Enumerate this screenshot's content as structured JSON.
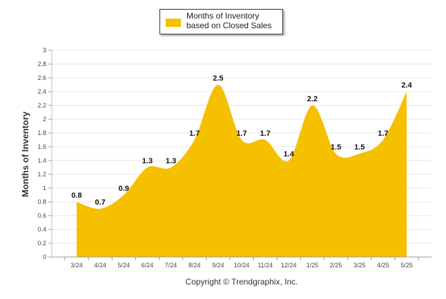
{
  "chart_data": {
    "type": "area",
    "categories": [
      "3/24",
      "4/24",
      "5/24",
      "6/24",
      "7/24",
      "8/24",
      "9/24",
      "10/24",
      "11/24",
      "12/24",
      "1/25",
      "2/25",
      "3/25",
      "4/25",
      "5/25"
    ],
    "series": [
      {
        "name": "Months of Inventory based on Closed Sales",
        "values": [
          0.8,
          0.7,
          0.9,
          1.3,
          1.3,
          1.7,
          2.5,
          1.7,
          1.7,
          1.4,
          2.2,
          1.5,
          1.5,
          1.7,
          2.4
        ],
        "color": "#f5c000"
      }
    ],
    "data_labels": [
      "0.8",
      "0.7",
      "0.9",
      "1.3",
      "1.3",
      "1.7",
      "2.5",
      "1.7",
      "1.7",
      "1.4",
      "2.2",
      "1.5",
      "1.5",
      "1.7",
      "2.4"
    ],
    "ylabel": "Months of Inventory",
    "xlabel": "",
    "ylim": [
      0,
      3
    ],
    "yticks": [
      "0",
      "0.2",
      "0.4",
      "0.6",
      "0.8",
      "1",
      "1.2",
      "1.4",
      "1.6",
      "1.8",
      "2",
      "2.2",
      "2.4",
      "2.6",
      "2.8",
      "3"
    ],
    "grid": true,
    "legend_position": "top-center"
  },
  "legend": {
    "label": "Months of Inventory based on Closed Sales"
  },
  "footer": {
    "copyright": "Copyright © Trendgraphix, Inc."
  }
}
